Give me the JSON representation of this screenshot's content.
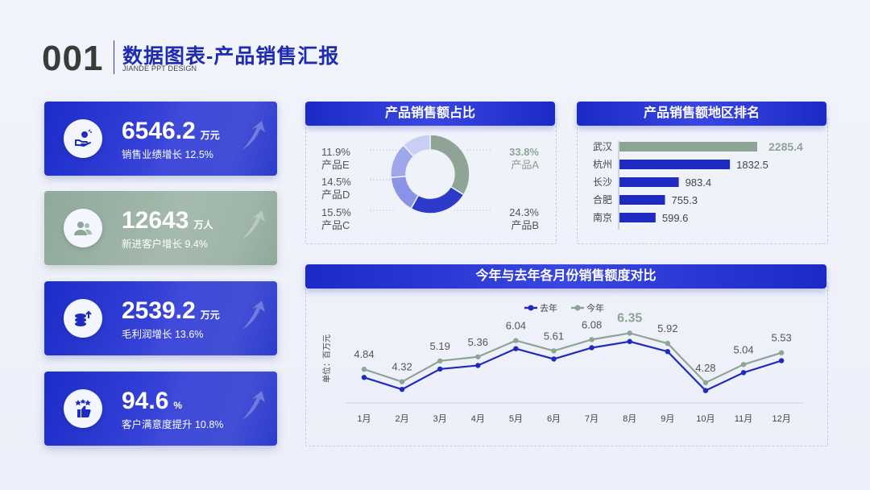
{
  "header": {
    "number": "001",
    "title": "数据图表-产品销售汇报",
    "subtitle": "JIANDE PPT DESIGN"
  },
  "kpis": [
    {
      "value": "6546.2",
      "unit": "万元",
      "desc": "销售业绩增长 12.5%",
      "icon": "hand-money-icon",
      "theme": "blue"
    },
    {
      "value": "12643",
      "unit": "万人",
      "desc": "新进客户增长 9.4%",
      "icon": "users-icon",
      "theme": "green"
    },
    {
      "value": "2539.2",
      "unit": "万元",
      "desc": "毛利润增长 13.6%",
      "icon": "coins-icon",
      "theme": "blue"
    },
    {
      "value": "94.6",
      "unit": "%",
      "desc": "客户满意度提升 10.8%",
      "icon": "stars-thumb-icon",
      "theme": "blue"
    }
  ],
  "colors": {
    "blue": "#1f2bc0",
    "green": "#8ea596",
    "donut_light": "#c9cff3",
    "donut_mid": "#8a93e6",
    "donut_dark": "#2c39c9"
  },
  "chart_data": [
    {
      "type": "pie",
      "title": "产品销售额占比",
      "slices": [
        {
          "label": "产品A",
          "value": 33.8,
          "display": "33.8%"
        },
        {
          "label": "产品B",
          "value": 24.3,
          "display": "24.3%"
        },
        {
          "label": "产品C",
          "value": 15.5,
          "display": "15.5%"
        },
        {
          "label": "产品D",
          "value": 14.5,
          "display": "14.5%"
        },
        {
          "label": "产品E",
          "value": 11.9,
          "display": "11.9%"
        }
      ]
    },
    {
      "type": "bar",
      "orientation": "horizontal",
      "title": "产品销售额地区排名",
      "categories": [
        "武汉",
        "杭州",
        "长沙",
        "合肥",
        "南京"
      ],
      "values": [
        2285.4,
        1832.5,
        983.4,
        755.3,
        599.6
      ],
      "labels": [
        "2285.4",
        "1832.5",
        "983.4",
        "755.3",
        "599.6"
      ],
      "xlim": [
        0,
        2285.4
      ]
    },
    {
      "type": "line",
      "title": "今年与去年各月份销售额度对比",
      "ylabel": "单位：百万元",
      "categories": [
        "1月",
        "2月",
        "3月",
        "4月",
        "5月",
        "6月",
        "7月",
        "8月",
        "9月",
        "10月",
        "11月",
        "12月"
      ],
      "series": [
        {
          "name": "去年",
          "values": [
            4.5,
            4.0,
            4.85,
            5.0,
            5.7,
            5.27,
            5.74,
            6.0,
            5.58,
            3.95,
            4.7,
            5.2
          ]
        },
        {
          "name": "今年",
          "values": [
            4.84,
            4.32,
            5.19,
            5.36,
            6.04,
            5.61,
            6.08,
            6.35,
            5.92,
            4.28,
            5.04,
            5.53
          ],
          "labels": [
            "4.84",
            "4.32",
            "5.19",
            "5.36",
            "6.04",
            "5.61",
            "6.08",
            "6.35",
            "5.92",
            "4.28",
            "5.04",
            "5.53"
          ]
        }
      ],
      "ylim": [
        3.5,
        6.8
      ],
      "highlight_index": 7
    }
  ]
}
